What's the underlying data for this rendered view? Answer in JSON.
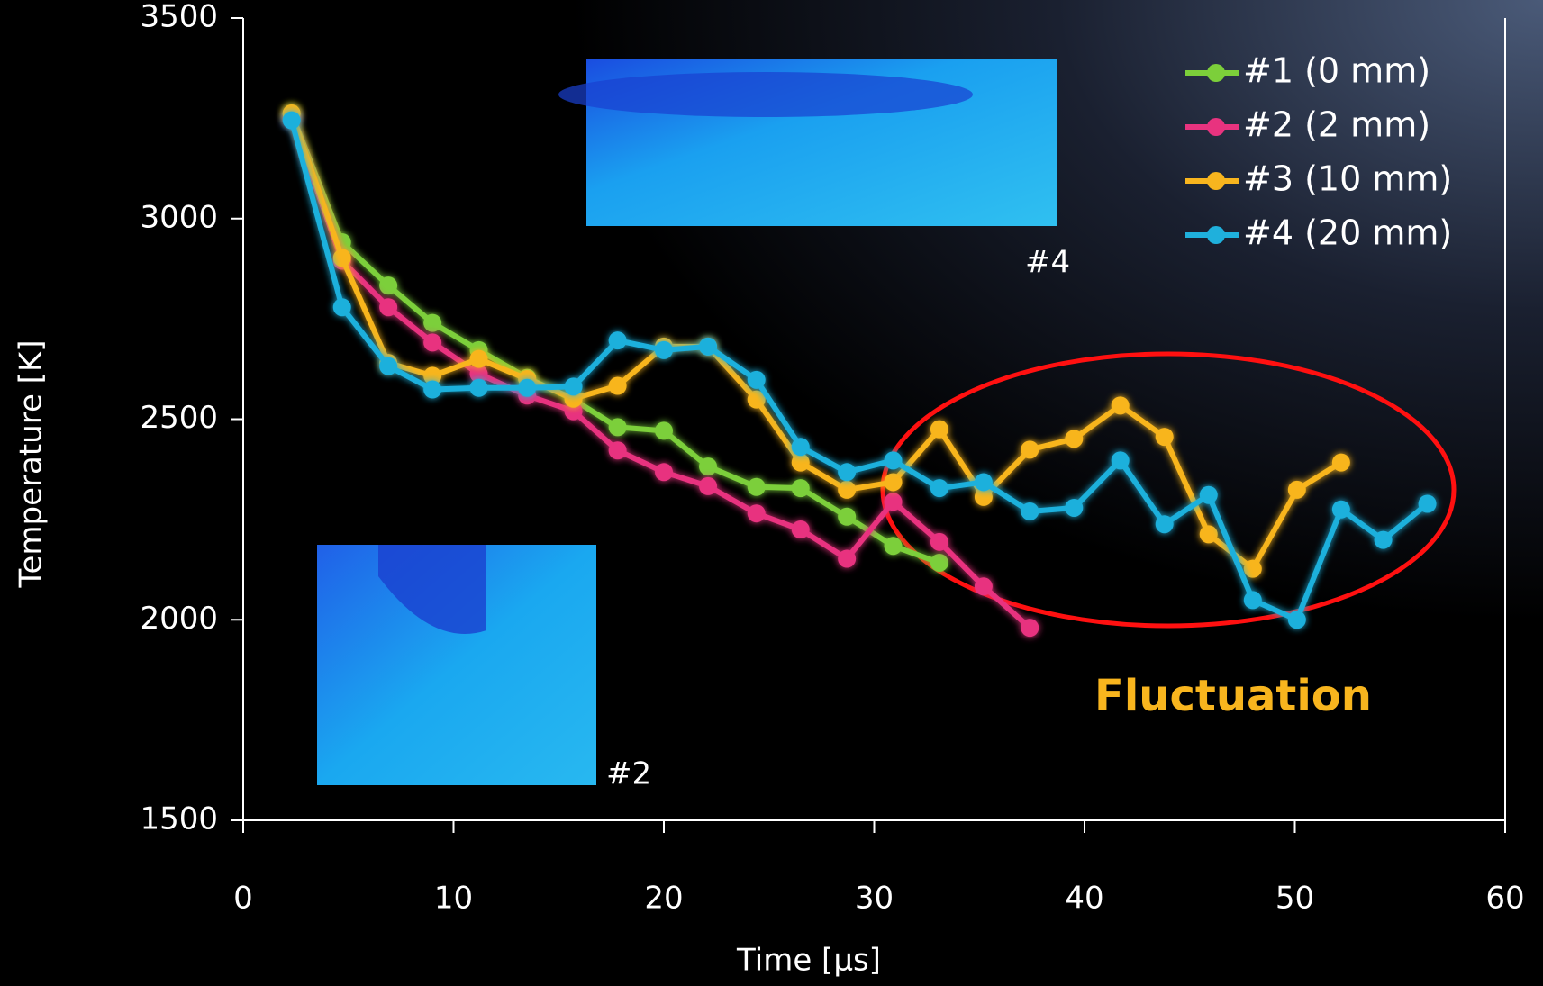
{
  "chart_data": {
    "type": "line",
    "xlabel": "Time [μs]",
    "ylabel": "Temperature [K]",
    "x": [
      2.3,
      4.7,
      6.9,
      9.0,
      11.2,
      13.5,
      15.7,
      17.8,
      20.0,
      22.1,
      24.4,
      26.5,
      28.7,
      30.9,
      33.1,
      35.2,
      37.4,
      39.5,
      41.7,
      43.8,
      45.9,
      48.0,
      50.1,
      52.2,
      54.2,
      56.3
    ],
    "series": [
      {
        "name": "#1 (0 mm)",
        "color": "#7ccf3a",
        "values": [
          3262,
          2941,
          2833,
          2740,
          2672,
          2603,
          2549,
          2480,
          2471,
          2382,
          2331,
          2328,
          2257,
          2184,
          2142,
          null,
          null,
          null,
          null,
          null,
          null,
          null,
          null,
          null,
          null,
          null
        ]
      },
      {
        "name": "#2 (2 mm)",
        "color": "#e8337f",
        "values": [
          3250,
          2895,
          2779,
          2691,
          2613,
          2559,
          2520,
          2422,
          2368,
          2333,
          2265,
          2225,
          2152,
          2294,
          2194,
          2083,
          1980,
          null,
          null,
          null,
          null,
          null,
          null,
          null,
          null,
          null
        ]
      },
      {
        "name": "#3 (10 mm)",
        "color": "#f8b51e",
        "values": [
          3262,
          2902,
          2640,
          2608,
          2650,
          2600,
          2551,
          2583,
          2681,
          2681,
          2549,
          2392,
          2324,
          2343,
          2475,
          2306,
          2424,
          2451,
          2534,
          2456,
          2213,
          2127,
          2324,
          2392,
          null,
          null
        ]
      },
      {
        "name": "#4 (20 mm)",
        "color": "#1fb0dc",
        "values": [
          3245,
          2779,
          2632,
          2574,
          2578,
          2578,
          2581,
          2696,
          2672,
          2681,
          2598,
          2431,
          2368,
          2397,
          2328,
          2343,
          2270,
          2279,
          2397,
          2238,
          2311,
          2049,
          2000,
          2275,
          2199,
          2289
        ]
      }
    ],
    "xlim": [
      0,
      60
    ],
    "xticks": [
      0,
      10,
      20,
      30,
      40,
      50,
      60
    ],
    "ylim": [
      1500,
      3500
    ],
    "yticks": [
      1500,
      2000,
      2500,
      3000,
      3500
    ],
    "annotations": [
      "#4",
      "#2",
      "Fluctuation"
    ]
  }
}
